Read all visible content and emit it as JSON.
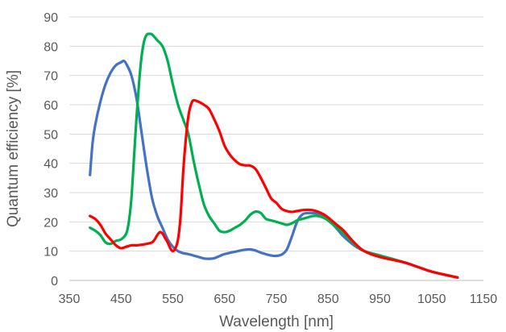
{
  "chart_data": {
    "type": "line",
    "title": "",
    "xlabel": "Wavelength [nm]",
    "ylabel": "Quantum efficiency [%]",
    "xlim": [
      350,
      1150
    ],
    "ylim": [
      0,
      90
    ],
    "x_ticks": [
      350,
      450,
      550,
      650,
      750,
      850,
      950,
      1050,
      1150
    ],
    "y_ticks": [
      0,
      10,
      20,
      30,
      40,
      50,
      60,
      70,
      80,
      90
    ],
    "grid": "horizontal",
    "legend": "none",
    "series": [
      {
        "color": "#4472c4",
        "x": [
          390,
          395,
          400,
          410,
          420,
          430,
          440,
          450,
          455,
          460,
          470,
          480,
          490,
          500,
          510,
          520,
          530,
          540,
          550,
          560,
          570,
          580,
          590,
          600,
          610,
          620,
          630,
          640,
          650,
          670,
          690,
          700,
          710,
          720,
          740,
          750,
          760,
          770,
          780,
          790,
          800,
          810,
          820,
          830,
          840,
          850,
          860,
          870,
          880,
          900,
          920,
          950,
          1000,
          1050,
          1100
        ],
        "y": [
          36,
          47,
          53,
          61,
          67,
          71,
          73.5,
          74.5,
          75,
          74,
          70,
          62,
          50,
          38,
          28,
          22,
          18,
          14,
          11.5,
          10,
          9.3,
          9,
          8.5,
          8,
          7.5,
          7.4,
          7.6,
          8.3,
          9,
          9.8,
          10.5,
          10.6,
          10.2,
          9.5,
          8.5,
          8.4,
          8.8,
          10.5,
          15,
          20,
          22.5,
          23,
          23,
          22.8,
          22,
          20.5,
          19,
          17,
          15,
          12,
          10,
          8.5,
          6,
          3,
          1
        ]
      },
      {
        "color": "#00b050",
        "x": [
          390,
          400,
          410,
          420,
          430,
          440,
          450,
          460,
          465,
          470,
          475,
          480,
          485,
          490,
          495,
          500,
          505,
          510,
          520,
          530,
          540,
          550,
          560,
          570,
          580,
          590,
          600,
          610,
          620,
          630,
          640,
          650,
          660,
          670,
          680,
          690,
          700,
          710,
          720,
          730,
          740,
          750,
          760,
          770,
          780,
          790,
          800,
          810,
          820,
          830,
          840,
          850,
          860,
          870,
          880,
          900,
          920,
          950,
          1000,
          1050,
          1100
        ],
        "y": [
          18,
          17,
          15.5,
          13,
          12.5,
          13.5,
          14,
          16,
          20,
          28,
          42,
          56,
          68,
          77,
          82,
          84,
          84.2,
          84,
          82,
          80,
          75,
          67,
          60,
          55,
          50,
          41,
          33,
          26,
          22,
          19.5,
          17,
          16.5,
          17,
          18,
          19,
          20.5,
          22.5,
          23.5,
          23,
          21,
          20.5,
          20,
          19.5,
          19,
          19.5,
          20.5,
          21,
          21.5,
          22,
          22,
          21.5,
          20.5,
          19,
          17.5,
          16,
          12.5,
          10,
          8.5,
          6,
          3,
          1
        ]
      },
      {
        "color": "#ff0000",
        "x": [
          390,
          400,
          410,
          420,
          430,
          440,
          450,
          460,
          470,
          480,
          490,
          500,
          510,
          515,
          520,
          525,
          530,
          535,
          540,
          545,
          550,
          555,
          560,
          565,
          570,
          575,
          580,
          585,
          590,
          600,
          610,
          620,
          630,
          640,
          650,
          660,
          670,
          680,
          690,
          700,
          710,
          720,
          730,
          740,
          750,
          760,
          770,
          780,
          790,
          800,
          810,
          820,
          830,
          840,
          850,
          860,
          870,
          880,
          900,
          920,
          950,
          1000,
          1050,
          1100
        ],
        "y": [
          22,
          21,
          19,
          16,
          14,
          12,
          11,
          11.5,
          12,
          12,
          12.2,
          12.5,
          13,
          14,
          15.5,
          16.5,
          16,
          14.5,
          13,
          11,
          10,
          11,
          14,
          22,
          37,
          48,
          56,
          60,
          61.5,
          61,
          60,
          58.5,
          55,
          51,
          46,
          43,
          41,
          39.7,
          39.3,
          39.2,
          38,
          35,
          31.5,
          28,
          26.5,
          24.5,
          23.7,
          23.4,
          23.7,
          24,
          24.1,
          24,
          23.5,
          22.7,
          21.5,
          20,
          18.5,
          17,
          13,
          10,
          8,
          6,
          3,
          1
        ]
      }
    ]
  }
}
